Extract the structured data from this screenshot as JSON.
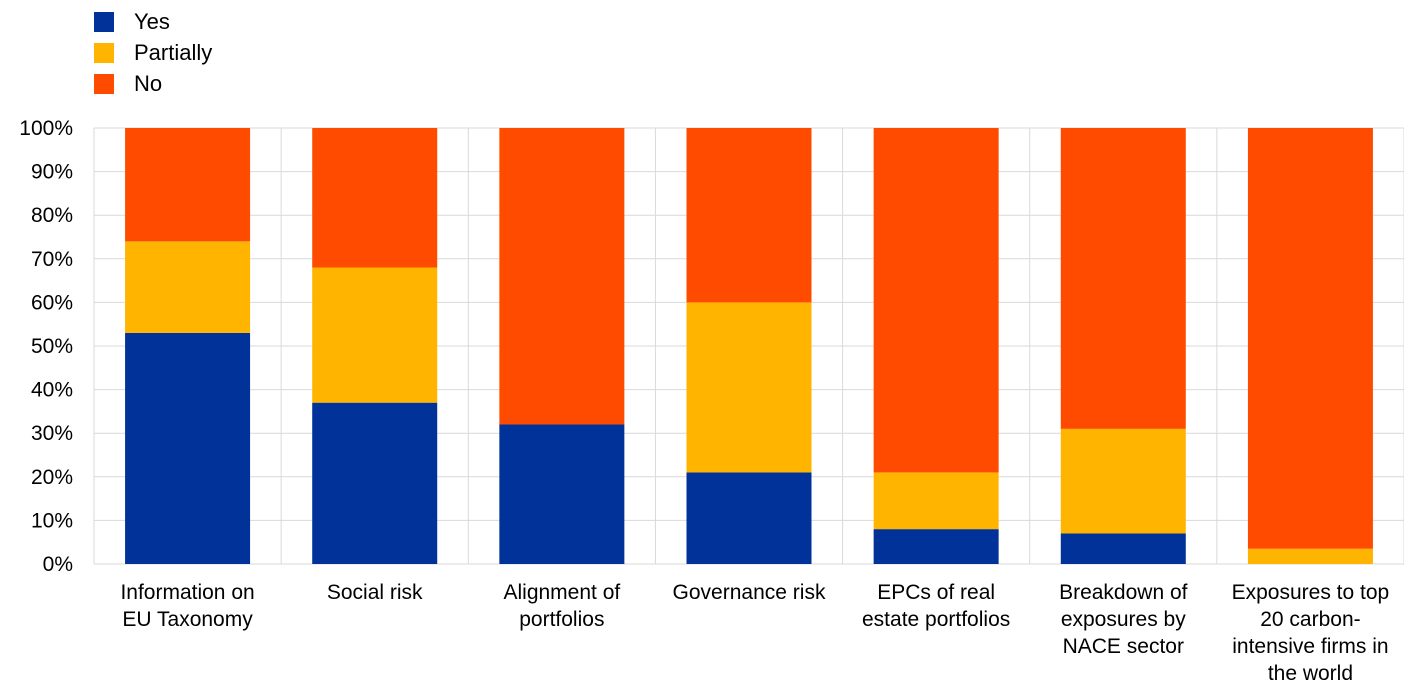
{
  "chart_data": {
    "type": "bar",
    "stacked": true,
    "percent_stacked": true,
    "categories": [
      [
        "Information on",
        "EU Taxonomy"
      ],
      [
        "Social risk"
      ],
      [
        "Alignment of",
        "portfolios"
      ],
      [
        "Governance risk"
      ],
      [
        "EPCs of real",
        "estate portfolios"
      ],
      [
        "Breakdown of",
        "exposures by",
        "NACE sector"
      ],
      [
        "Exposures to top",
        "20 carbon-",
        "intensive firms in",
        "the world"
      ]
    ],
    "series": [
      {
        "name": "Yes",
        "color": "#003299",
        "values": [
          53,
          37,
          32,
          21,
          8,
          7,
          0
        ]
      },
      {
        "name": "Partially",
        "color": "#FFB400",
        "values": [
          21,
          31,
          0,
          39,
          13,
          24,
          3.5
        ]
      },
      {
        "name": "No",
        "color": "#FF4B00",
        "values": [
          26,
          32,
          68,
          40,
          79,
          69,
          96.5
        ]
      }
    ],
    "ylim": [
      0,
      100
    ],
    "yticks": [
      "0%",
      "10%",
      "20%",
      "30%",
      "40%",
      "50%",
      "60%",
      "70%",
      "80%",
      "90%",
      "100%"
    ],
    "grid": true,
    "legend_position": "top-left"
  }
}
